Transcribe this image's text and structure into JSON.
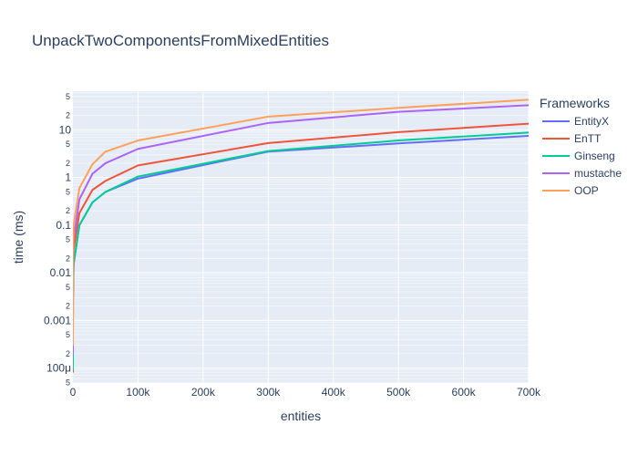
{
  "chart_data": {
    "type": "line",
    "title": "UnpackTwoComponentsFromMixedEntities",
    "xlabel": "entities",
    "ylabel": "time (ms)",
    "xscale": "linear",
    "yscale": "log",
    "xlim": [
      0,
      700000
    ],
    "ylim": [
      4.85e-05,
      65
    ],
    "grid": true,
    "legend": {
      "title": "Frameworks",
      "position": "right"
    },
    "x_ticks": [
      {
        "value": 0,
        "label": "0"
      },
      {
        "value": 100000,
        "label": "100k"
      },
      {
        "value": 200000,
        "label": "200k"
      },
      {
        "value": 300000,
        "label": "300k"
      },
      {
        "value": 400000,
        "label": "400k"
      },
      {
        "value": 500000,
        "label": "500k"
      },
      {
        "value": 600000,
        "label": "600k"
      },
      {
        "value": 700000,
        "label": "700k"
      }
    ],
    "y_ticks": [
      {
        "value": 0.0001,
        "label": "100μ"
      },
      {
        "value": 0.001,
        "label": "0.001"
      },
      {
        "value": 0.01,
        "label": "0.01"
      },
      {
        "value": 0.1,
        "label": "0.1"
      },
      {
        "value": 1,
        "label": "1"
      },
      {
        "value": 10,
        "label": "10"
      }
    ],
    "y_minor_labels": [
      "2",
      "5"
    ],
    "x": [
      1,
      10,
      100,
      1000,
      10000,
      30000,
      50000,
      100000,
      300000,
      500000,
      700000
    ],
    "series": [
      {
        "name": "EntityX",
        "color": "#636efa",
        "values": [
          0.0001,
          0.0006,
          0.003,
          0.015,
          0.1,
          0.3,
          0.5,
          0.95,
          3.5,
          5.2,
          7.5
        ]
      },
      {
        "name": "EnTT",
        "color": "#ef553b",
        "values": [
          8e-05,
          0.0005,
          0.003,
          0.03,
          0.18,
          0.55,
          0.85,
          1.8,
          5.3,
          9.0,
          13.5
        ]
      },
      {
        "name": "Ginseng",
        "color": "#00cc96",
        "values": [
          9e-05,
          0.0005,
          0.003,
          0.015,
          0.1,
          0.3,
          0.5,
          1.05,
          3.6,
          6.0,
          8.8
        ]
      },
      {
        "name": "mustache",
        "color": "#ab63fa",
        "values": [
          0.0002,
          0.001,
          0.008,
          0.05,
          0.35,
          1.2,
          2.0,
          4.0,
          14.0,
          24.0,
          33.0
        ]
      },
      {
        "name": "OOP",
        "color": "#ffa15a",
        "values": [
          0.0003,
          0.002,
          0.015,
          0.1,
          0.6,
          1.9,
          3.5,
          6.0,
          19.0,
          29.0,
          43.0
        ]
      }
    ]
  }
}
